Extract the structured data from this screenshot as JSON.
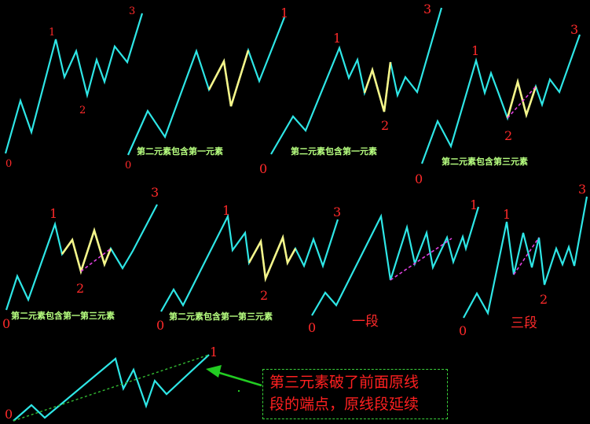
{
  "diagrams": {
    "d1": {
      "p0": "0",
      "p1": "1",
      "p2": "2",
      "p3": "3"
    },
    "d2": {
      "p0": "0",
      "p1": "1",
      "caption": "第二元素包含第一元素"
    },
    "d3": {
      "p0": "0",
      "p1": "1",
      "p2": "2",
      "p3": "3",
      "caption": "第二元素包含第一元素"
    },
    "d4": {
      "p0": "0",
      "p1": "1",
      "p2": "2",
      "p3": "3",
      "caption": "第二元素包含第三元素"
    },
    "d5": {
      "p0": "0",
      "p1": "1",
      "p2": "2",
      "p3": "3",
      "caption": "第二元素包含第一第三元素"
    },
    "d6": {
      "p0": "0",
      "p1": "1",
      "p2": "2",
      "p3": "3",
      "caption": "第二元素包含第一第三元素"
    },
    "d7": {
      "p0": "0",
      "p1": "1",
      "caption": "一段"
    },
    "d8": {
      "p0": "0",
      "p1": "1",
      "p2": "2",
      "p3": "3",
      "caption": "三段"
    },
    "d9": {
      "p0": "0",
      "p1": "1"
    }
  },
  "note": {
    "line1": "第三元素破了前面原线",
    "line2": "段的端点，原线段延续"
  },
  "colors": {
    "background": "#000000",
    "wave": "#2ee6e6",
    "highlight": "#f5f58a",
    "dashed_magenta": "#e040e0",
    "label_red": "#ff2a2a",
    "caption_green": "#b7ff80",
    "arrow_green": "#22cc22"
  }
}
